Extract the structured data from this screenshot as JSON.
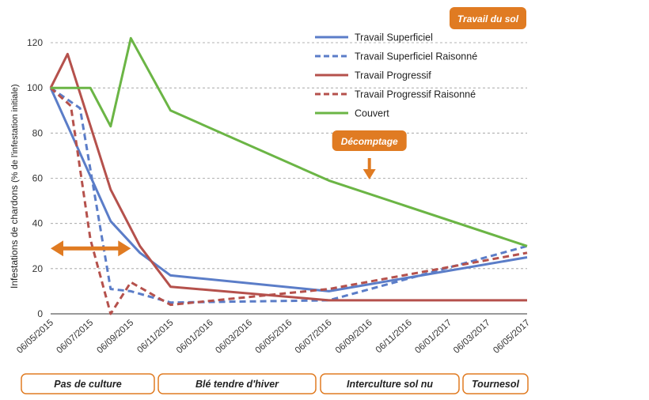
{
  "chart_data": {
    "type": "line",
    "title": "",
    "ylabel": "Infestations de chardons",
    "ylabel_unit": "(% de l'infestation initiale)",
    "ylim": [
      0,
      120
    ],
    "yticks": [
      0,
      20,
      40,
      60,
      80,
      100,
      120
    ],
    "grid": true,
    "legend_position": "top-right",
    "legend_title": "Travail du sol",
    "x_tick_labels": [
      "06/05/2015",
      "06/07/2015",
      "06/09/2015",
      "06/11/2015",
      "06/01/2016",
      "06/03/2016",
      "06/05/2016",
      "06/07/2016",
      "06/09/2016",
      "06/11/2016",
      "06/01/2017",
      "06/03/2017",
      "06/05/2017"
    ],
    "series": [
      {
        "name": "Travail Superficiel",
        "color": "#5B7DC8",
        "dash": "solid",
        "x": [
          "2015-05-06",
          "2015-08-06",
          "2015-09-20",
          "2015-11-06",
          "2016-07-06",
          "2017-05-06"
        ],
        "y": [
          100,
          41,
          27,
          17,
          10,
          25
        ]
      },
      {
        "name": "Travail Superficiel Raisonné",
        "color": "#5B7DC8",
        "dash": "dashed",
        "x": [
          "2015-05-06",
          "2015-06-20",
          "2015-08-06",
          "2015-09-06",
          "2015-11-06",
          "2016-07-06",
          "2017-05-06"
        ],
        "y": [
          100,
          91,
          11,
          10,
          5,
          6,
          30
        ]
      },
      {
        "name": "Travail Progressif",
        "color": "#B5514C",
        "dash": "solid",
        "x": [
          "2015-05-06",
          "2015-06-01",
          "2015-08-06",
          "2015-09-20",
          "2015-11-06",
          "2016-07-06",
          "2017-05-06"
        ],
        "y": [
          100,
          115,
          55,
          30,
          12,
          6,
          6
        ]
      },
      {
        "name": "Travail Progressif Raisonné",
        "color": "#B5514C",
        "dash": "dashed",
        "x": [
          "2015-05-06",
          "2015-06-06",
          "2015-07-06",
          "2015-08-06",
          "2015-09-06",
          "2015-11-06",
          "2016-07-06",
          "2017-05-06"
        ],
        "y": [
          100,
          92,
          33,
          0,
          14,
          4,
          11,
          27
        ]
      },
      {
        "name": "Couvert",
        "color": "#6BB545",
        "dash": "solid",
        "x": [
          "2015-05-06",
          "2015-07-06",
          "2015-08-06",
          "2015-09-06",
          "2015-11-06",
          "2016-07-06",
          "2017-05-06"
        ],
        "y": [
          100,
          100,
          83,
          122,
          90,
          59,
          30
        ]
      }
    ],
    "annotations": {
      "decomptage": {
        "label": "Décomptage",
        "date": "2016-09-06",
        "value": 61
      },
      "double_arrow": {
        "from": "2015-05-06",
        "to": "2015-09-06",
        "value": 30
      }
    },
    "phases": [
      {
        "label": "Pas de culture",
        "start": "2015-05-06",
        "end": "2015-09-20"
      },
      {
        "label": "Blé tendre d'hiver",
        "start": "2015-09-20",
        "end": "2016-07-06"
      },
      {
        "label": "Interculture sol nu",
        "start": "2016-07-06",
        "end": "2017-03-06"
      },
      {
        "label": "Tournesol",
        "start": "2017-03-06",
        "end": "2017-05-06"
      }
    ],
    "accent_color": "#E07B22"
  }
}
